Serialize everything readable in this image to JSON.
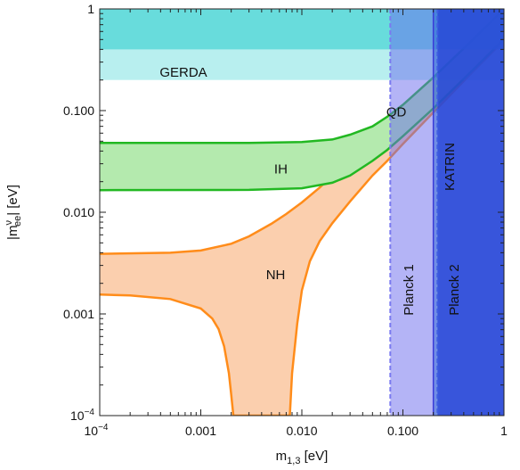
{
  "chart_data": {
    "type": "area",
    "scale": {
      "x": "log",
      "y": "log"
    },
    "xlim": [
      0.0001,
      1
    ],
    "ylim": [
      0.0001,
      1
    ],
    "xlabel": {
      "main": "m",
      "sub": "1,3",
      "unit": "[eV]"
    },
    "ylabel": {
      "pre": "|m",
      "sup": "ν",
      "sub": "ee",
      "post": "| [eV]"
    },
    "x_ticks": [
      {
        "value": 0.0001,
        "label": "10",
        "sup": "−4"
      },
      {
        "value": 0.001,
        "label": "0.001"
      },
      {
        "value": 0.01,
        "label": "0.010"
      },
      {
        "value": 0.1,
        "label": "0.100"
      },
      {
        "value": 1,
        "label": "1"
      }
    ],
    "y_ticks": [
      {
        "value": 0.0001,
        "label": "10",
        "sup": "−4"
      },
      {
        "value": 0.001,
        "label": "0.001"
      },
      {
        "value": 0.01,
        "label": "0.010"
      },
      {
        "value": 0.1,
        "label": "0.100"
      },
      {
        "value": 1,
        "label": "1"
      }
    ],
    "bands": {
      "IH": {
        "label": "IH",
        "color": "#22b822",
        "fill": "#b4eaae",
        "upper": [
          [
            0.0001,
            0.048
          ],
          [
            0.003,
            0.048
          ],
          [
            0.01,
            0.049
          ],
          [
            0.02,
            0.052
          ],
          [
            0.03,
            0.058
          ],
          [
            0.05,
            0.07
          ],
          [
            0.07,
            0.087
          ],
          [
            0.1,
            0.114
          ],
          [
            0.2,
            0.212
          ],
          [
            0.5,
            0.505
          ],
          [
            1,
            1.0
          ]
        ],
        "lower": [
          [
            0.0001,
            0.0165
          ],
          [
            0.003,
            0.0166
          ],
          [
            0.01,
            0.0172
          ],
          [
            0.02,
            0.0195
          ],
          [
            0.03,
            0.023
          ],
          [
            0.05,
            0.032
          ],
          [
            0.07,
            0.041
          ],
          [
            0.1,
            0.056
          ],
          [
            0.2,
            0.105
          ],
          [
            0.5,
            0.255
          ],
          [
            1,
            0.505
          ]
        ]
      },
      "NH": {
        "label": "NH",
        "color": "#ff8c1a",
        "fill": "#fbcfae",
        "upper": [
          [
            0.0001,
            0.0039
          ],
          [
            0.0005,
            0.004
          ],
          [
            0.001,
            0.0042
          ],
          [
            0.002,
            0.0049
          ],
          [
            0.003,
            0.0058
          ],
          [
            0.005,
            0.0077
          ],
          [
            0.007,
            0.0096
          ],
          [
            0.01,
            0.0125
          ],
          [
            0.015,
            0.0175
          ],
          [
            0.02,
            0.023
          ],
          [
            0.03,
            0.033
          ],
          [
            0.05,
            0.052
          ],
          [
            0.07,
            0.072
          ],
          [
            0.1,
            0.102
          ],
          [
            0.2,
            0.201
          ],
          [
            0.5,
            0.5
          ],
          [
            1,
            1.0
          ]
        ],
        "lower": [
          [
            0.0001,
            0.00155
          ],
          [
            0.0002,
            0.00152
          ],
          [
            0.0005,
            0.0014
          ],
          [
            0.001,
            0.00113
          ],
          [
            0.0013,
            0.0009
          ],
          [
            0.0015,
            0.00071
          ],
          [
            0.0017,
            0.00048
          ],
          [
            0.0019,
            0.00026
          ],
          [
            0.002,
            0.00016
          ],
          [
            0.0021,
            0.0001
          ],
          [
            0.0076,
            0.0001
          ],
          [
            0.008,
            0.00026
          ],
          [
            0.009,
            0.0008
          ],
          [
            0.01,
            0.0017
          ],
          [
            0.012,
            0.0033
          ],
          [
            0.015,
            0.0052
          ],
          [
            0.02,
            0.0078
          ],
          [
            0.03,
            0.0128
          ],
          [
            0.05,
            0.023
          ],
          [
            0.07,
            0.032
          ],
          [
            0.1,
            0.047
          ],
          [
            0.2,
            0.096
          ],
          [
            0.5,
            0.245
          ],
          [
            1,
            0.49
          ]
        ]
      }
    },
    "gerda": {
      "label": "GERDA",
      "limits": [
        {
          "ymin": 0.4,
          "color": "#4ed6d6",
          "opacity": 0.75
        },
        {
          "ymin": 0.2,
          "color": "#4ed6d6",
          "opacity": 0.4
        }
      ]
    },
    "cosmology": [
      {
        "label": "Planck 1",
        "xmin": 0.075,
        "color": "#6a6aee",
        "opacity": 0.5,
        "edge": "#7a7af0"
      },
      {
        "label": "Planck 2",
        "xmin": 0.22,
        "color": "#2727dd",
        "opacity": 0.72,
        "edge": "#5a5af0"
      }
    ],
    "katrin": {
      "label": "KATRIN",
      "xmin": 0.2,
      "color": "#2060d0",
      "opacity": 0.45
    },
    "annotations": [
      {
        "text": "QD",
        "x": 0.086,
        "y": 0.088
      },
      {
        "text": "IH",
        "x": 0.0062,
        "y": 0.024
      },
      {
        "text": "NH",
        "x": 0.0055,
        "y": 0.0022
      }
    ]
  }
}
